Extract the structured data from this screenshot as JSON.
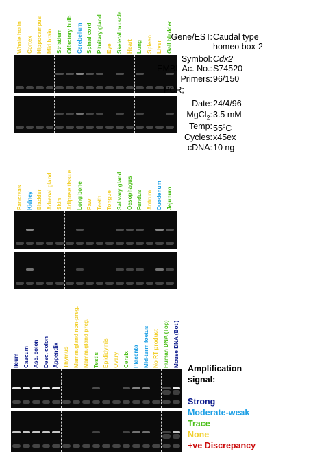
{
  "colors": {
    "strong": "#0b1a8c",
    "moderate_weak": "#1ea0e6",
    "trace": "#4cbf1a",
    "none": "#f2d030",
    "discrepancy": "#cc1010"
  },
  "panels": [
    {
      "lanes": [
        {
          "label": "Whole brain",
          "level": "none"
        },
        {
          "label": "Cortex",
          "level": "none"
        },
        {
          "label": "Hippocampus",
          "level": "none"
        },
        {
          "label": "Mid brain",
          "level": "none"
        },
        {
          "label": "Striatium",
          "level": "trace"
        },
        {
          "label": "Olfactory bulb",
          "level": "trace"
        },
        {
          "label": "Cerebellum",
          "level": "moderate_weak"
        },
        {
          "label": "Spinal cord",
          "level": "trace"
        },
        {
          "label": "Pituitary gland",
          "level": "trace"
        },
        {
          "label": "Eye",
          "level": "none"
        },
        {
          "label": "Skeletal muscle",
          "level": "trace"
        },
        {
          "label": "Heart",
          "level": "none"
        },
        {
          "label": "Lung",
          "level": "trace"
        },
        {
          "label": "Spleen",
          "level": "none"
        },
        {
          "label": "Liver",
          "level": "none"
        },
        {
          "label": "Gall bladder",
          "level": "trace"
        }
      ]
    },
    {
      "lanes": [
        {
          "label": "Pancreas",
          "level": "none"
        },
        {
          "label": "Kidney",
          "level": "moderate_weak"
        },
        {
          "label": "Bladder",
          "level": "none"
        },
        {
          "label": "Adrenal gland",
          "level": "none"
        },
        {
          "label": "Skin",
          "level": "none"
        },
        {
          "label": "Adipose tissue",
          "level": "none"
        },
        {
          "label": "Long bone",
          "level": "trace"
        },
        {
          "label": "Paw",
          "level": "none"
        },
        {
          "label": "Teeth",
          "level": "none"
        },
        {
          "label": "Tongue",
          "level": "none"
        },
        {
          "label": "Salivary gland",
          "level": "trace"
        },
        {
          "label": "Oesophagus",
          "level": "trace"
        },
        {
          "label": "Fundus",
          "level": "trace"
        },
        {
          "label": "Antrum",
          "level": "none"
        },
        {
          "label": "Duodenum",
          "level": "moderate_weak"
        },
        {
          "label": "Jejunum",
          "level": "trace"
        }
      ]
    },
    {
      "lanes": [
        {
          "label": "Ileum",
          "level": "strong"
        },
        {
          "label": "Caecum",
          "level": "strong"
        },
        {
          "label": "Asc. colon",
          "level": "strong"
        },
        {
          "label": "Desc. colon",
          "level": "strong"
        },
        {
          "label": "Appendix",
          "level": "strong"
        },
        {
          "label": "Thymus",
          "level": "none"
        },
        {
          "label": "Mamm.gland non-preg.",
          "level": "none"
        },
        {
          "label": "Mamm.gland preg.",
          "level": "none"
        },
        {
          "label": "Testis",
          "level": "trace"
        },
        {
          "label": "Epididymis",
          "level": "none"
        },
        {
          "label": "Ovary",
          "level": "none"
        },
        {
          "label": "Cervix",
          "level": "trace"
        },
        {
          "label": "Placenta",
          "level": "moderate_weak"
        },
        {
          "label": "Mid-term foetus",
          "level": "moderate_weak"
        },
        {
          "label": "No RT product",
          "level": "none"
        },
        {
          "label": "Human DNA (Top)",
          "level": "trace"
        },
        {
          "label": "Mouse DNA (Bot.)",
          "level": "strong"
        }
      ]
    }
  ],
  "info": {
    "gene_label": "Gene/EST:",
    "gene_value_1": "Caudal type",
    "gene_value_2": "homeo box-2",
    "symbol_label": "Symbol:",
    "symbol_value": "Cdx2",
    "embl_label": "EMBL Ac. No.:",
    "embl_value": "S74520",
    "primers_label": "Primers:",
    "primers_value": "96/150",
    "pcr_label": "PCR;",
    "date_label": "Date:",
    "date_value": "24/4/96",
    "mgcl_label": "MgCl",
    "mgcl_sub": "2",
    "mgcl_colon": ":",
    "mgcl_value": "3.5 mM",
    "temp_label": "Temp:",
    "temp_value": "55",
    "temp_unit": "C",
    "temp_deg": "o",
    "cycles_label": "Cycles:",
    "cycles_value": "x45ex",
    "cdna_label": "cDNA:",
    "cdna_value": "10 ng"
  },
  "legend": {
    "title_1": "Amplification",
    "title_2": "signal:",
    "strong": "Strong",
    "moderate_weak": "Moderate-weak",
    "trace": "Trace",
    "none": "None",
    "discrepancy": "+ve Discrepancy"
  }
}
